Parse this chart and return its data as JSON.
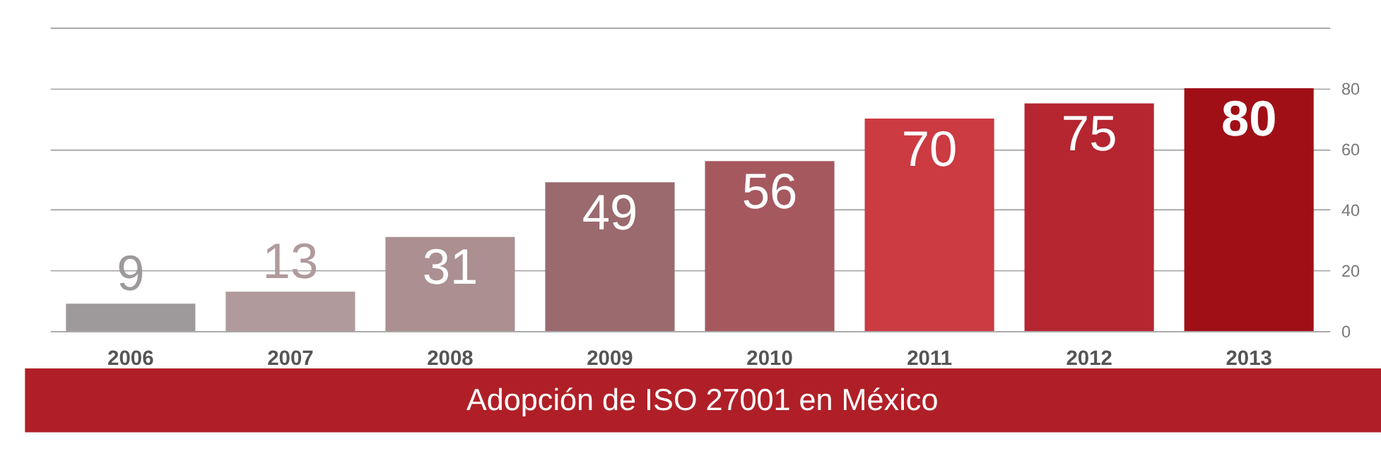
{
  "chart_data": {
    "type": "bar",
    "title": "Adopción de ISO 27001 en México",
    "categories": [
      "2006",
      "2007",
      "2008",
      "2009",
      "2010",
      "2011",
      "2012",
      "2013"
    ],
    "values": [
      9,
      13,
      31,
      49,
      56,
      70,
      75,
      80
    ],
    "colors": [
      "#9e9a9b",
      "#b09a9b",
      "#ab8f91",
      "#9a6a6e",
      "#a6585f",
      "#cc3a42",
      "#b52630",
      "#a00f16"
    ],
    "ylim": [
      0,
      100
    ],
    "yticks": [
      0,
      20,
      40,
      60,
      80,
      {
        "value": 100,
        "label": null
      }
    ],
    "grid": "y",
    "data_labels": true
  }
}
